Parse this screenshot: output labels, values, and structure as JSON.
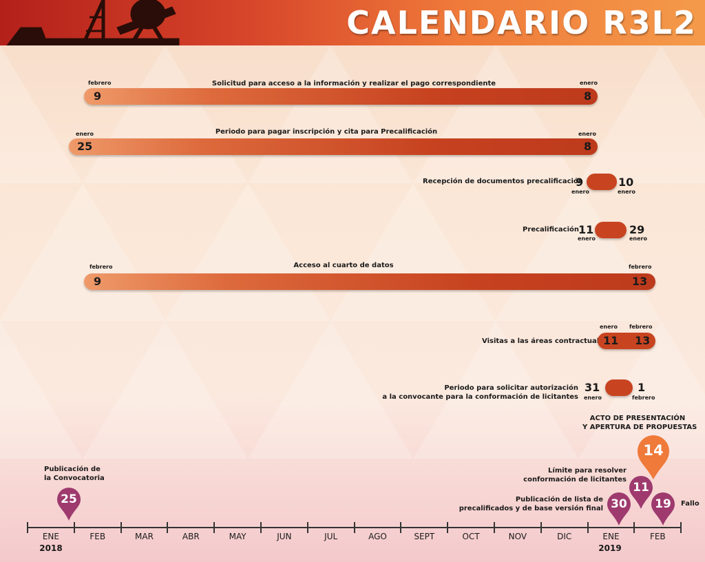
{
  "header": {
    "title": "CALENDARIO R3L2"
  },
  "bars": [
    {
      "label": "Solicitud para acceso a la información y realizar el pago correspondiente",
      "start_month": "febrero",
      "start_day": "9",
      "end_month": "enero",
      "end_day": "8"
    },
    {
      "label": "Periodo para pagar inscripción y cita para Precalificación",
      "start_month": "enero",
      "start_day": "25",
      "end_month": "enero",
      "end_day": "8"
    },
    {
      "label": "Recepción de documentos precalificación",
      "start_month": "enero",
      "start_day": "9",
      "end_month": "enero",
      "end_day": "10"
    },
    {
      "label": "Precalificación",
      "start_month": "enero",
      "start_day": "11",
      "end_month": "enero",
      "end_day": "29"
    },
    {
      "label": "Acceso al cuarto de datos",
      "start_month": "febrero",
      "start_day": "9",
      "end_month": "febrero",
      "end_day": "13"
    },
    {
      "label": "Visitas a las áreas contractuales",
      "start_month": "enero",
      "start_day": "11",
      "end_month": "febrero",
      "end_day": "13"
    },
    {
      "label_line1": "Periodo para solicitar autorización",
      "label_line2": "a la convocante para la conformación de licitantes",
      "start_month": "enero",
      "start_day": "31",
      "end_month": "febrero",
      "end_day": "1"
    }
  ],
  "timeline": {
    "months": [
      "ENE",
      "FEB",
      "MAR",
      "ABR",
      "MAY",
      "JUN",
      "JUL",
      "AGO",
      "SEPT",
      "OCT",
      "NOV",
      "DIC",
      "ENE",
      "FEB"
    ],
    "year_start": "2018",
    "year_end": "2019"
  },
  "milestones": {
    "convocatoria": {
      "line1": "Publicación de",
      "line2": "la Convocatoria",
      "day": "25"
    },
    "lista": {
      "line1": "Publicación de lista de",
      "line2": "precalificados y de base versión final",
      "day": "30"
    },
    "limite": {
      "line1": "Límite para resolver",
      "line2": "conformación de licitantes",
      "day": "11"
    },
    "acto": {
      "line1": "ACTO DE PRESENTACIÓN",
      "line2": "Y APERTURA DE PROPUESTAS",
      "day": "14"
    },
    "fallo": {
      "label": "Fallo",
      "day": "19"
    }
  },
  "colors": {
    "bar": "#c84420",
    "pin": "#9e3a6e",
    "pin_highlight": "#ef7a3a",
    "header": "#d7452a"
  }
}
